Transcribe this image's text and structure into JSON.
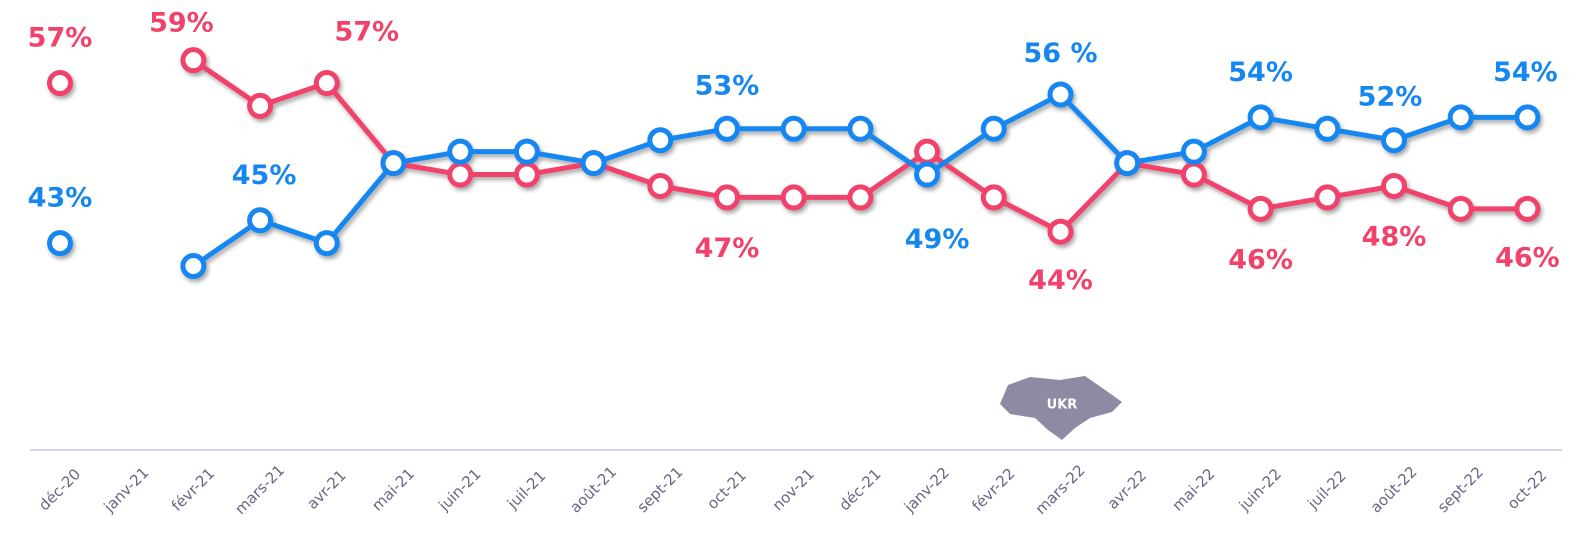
{
  "chart_data": {
    "type": "line",
    "categories": [
      "déc-20",
      "janv-21",
      "févr-21",
      "mars-21",
      "avr-21",
      "mai-21",
      "juin-21",
      "juil-21",
      "août-21",
      "sept-21",
      "oct-21",
      "nov-21",
      "déc-21",
      "janv-22",
      "févr-22",
      "mars-22",
      "avr-22",
      "mai-22",
      "juin-22",
      "juil-22",
      "août-22",
      "sept-22",
      "oct-22"
    ],
    "series": [
      {
        "color": "#f0426b",
        "values": [
          57,
          null,
          59,
          55,
          57,
          50,
          49,
          49,
          50,
          48,
          47,
          47,
          47,
          51,
          47,
          44,
          50,
          49,
          46,
          47,
          48,
          46,
          46
        ],
        "value_labels": [
          "57%",
          null,
          "59%",
          null,
          "57%",
          null,
          null,
          null,
          null,
          null,
          "47%",
          null,
          null,
          null,
          null,
          "44%",
          null,
          null,
          "46%",
          null,
          "48%",
          null,
          "46%"
        ]
      },
      {
        "color": "#1787f0",
        "values": [
          43,
          null,
          41,
          45,
          43,
          50,
          51,
          51,
          50,
          52,
          53,
          53,
          53,
          49,
          53,
          56,
          50,
          51,
          54,
          53,
          52,
          54,
          54
        ],
        "value_labels": [
          "43%",
          null,
          null,
          "45%",
          null,
          null,
          null,
          null,
          null,
          null,
          "53%",
          null,
          null,
          "49%",
          null,
          "56 %",
          null,
          null,
          "54%",
          null,
          "52%",
          null,
          "54%"
        ]
      }
    ],
    "annotations": [
      "UKR"
    ],
    "ylim": [
      25,
      64
    ]
  }
}
